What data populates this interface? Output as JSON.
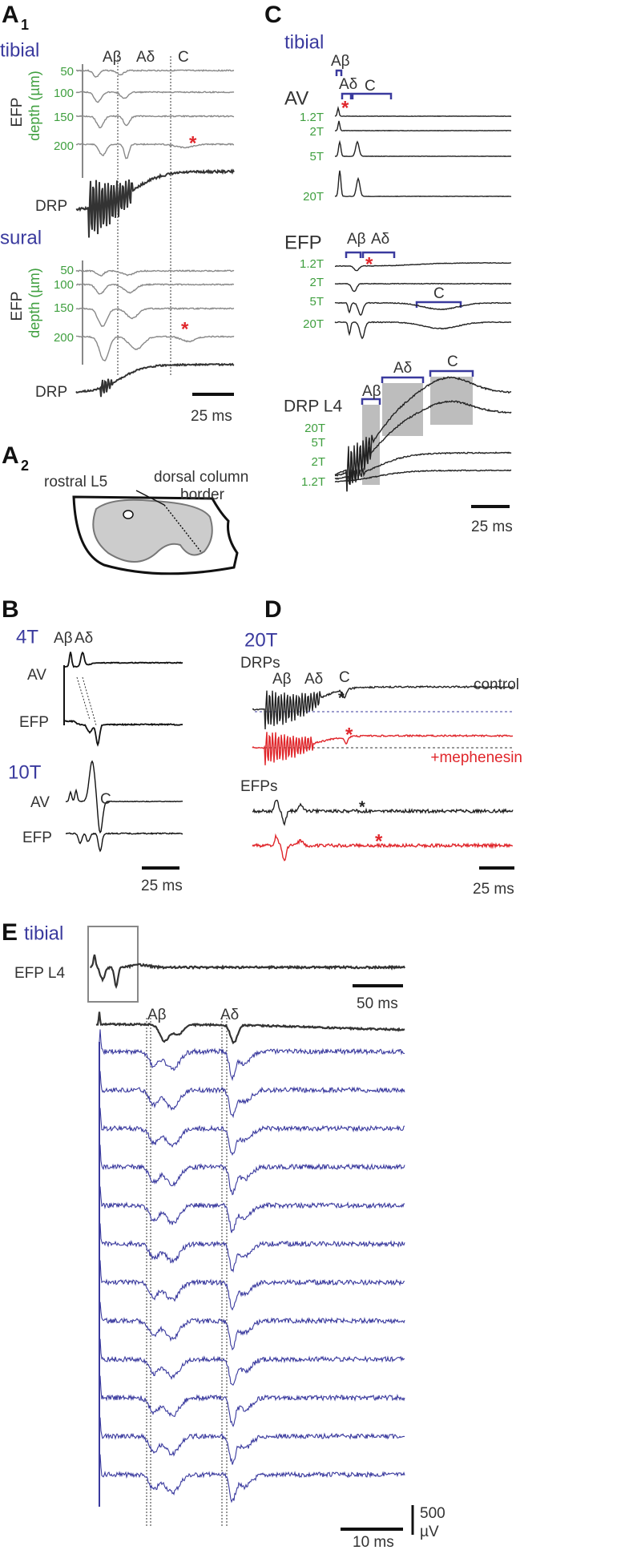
{
  "panel_a1": {
    "label": "A",
    "label_sub": "1",
    "tibial": {
      "title": "tibial",
      "components": [
        "Aβ",
        "Aδ",
        "C"
      ],
      "efp_label": "EFP",
      "depth_label": "depth (µm)",
      "depths": [
        "50",
        "100",
        "150",
        "200"
      ],
      "asterisk": "*",
      "drp_label": "DRP"
    },
    "sural": {
      "title": "sural",
      "efp_label": "EFP",
      "depth_label": "depth (µm)",
      "depths": [
        "50",
        "100",
        "150",
        "200"
      ],
      "asterisk": "*",
      "drp_label": "DRP"
    },
    "scale_bar": "25 ms"
  },
  "panel_a2": {
    "label": "A",
    "label_sub": "2",
    "rostral_label": "rostral L5",
    "border_label": [
      "dorsal column",
      "border"
    ]
  },
  "panel_b": {
    "label": "B",
    "stim_4t": {
      "title": "4T",
      "components": [
        "Aβ",
        "Aδ"
      ],
      "traces": [
        "AV",
        "EFP"
      ]
    },
    "stim_10t": {
      "title": "10T",
      "components": [
        "C"
      ],
      "traces": [
        "AV",
        "EFP"
      ]
    },
    "scale_bar": "25 ms"
  },
  "panel_c": {
    "label": "C",
    "title": "tibial",
    "av": {
      "label": "AV",
      "components": [
        "Aβ",
        "Aδ",
        "C"
      ],
      "asterisk": "*",
      "intensities": [
        "1.2T",
        "2T",
        "5T",
        "20T"
      ]
    },
    "efp": {
      "label": "EFP",
      "components": [
        "Aβ",
        "Aδ",
        "C"
      ],
      "asterisk": "*",
      "intensities": [
        "1.2T",
        "2T",
        "5T",
        "20T"
      ]
    },
    "drp": {
      "label": "DRP L4",
      "components": [
        "Aβ",
        "Aδ",
        "C"
      ],
      "intensities": [
        "20T",
        "5T",
        "2T",
        "1.2T"
      ]
    },
    "scale_bar": "25 ms"
  },
  "panel_d": {
    "label": "D",
    "title": "20T",
    "drps": {
      "label": "DRPs",
      "components": [
        "Aβ",
        "Aδ",
        "C"
      ],
      "asterisks": [
        "*",
        "*"
      ],
      "conditions": [
        "control",
        "+mephenesin"
      ]
    },
    "efps": {
      "label": "EFPs",
      "asterisks": [
        "*",
        "*"
      ]
    },
    "scale_bar": "25 ms"
  },
  "panel_e": {
    "label": "E",
    "title": "tibial",
    "efp_label": "EFP L4",
    "scale_bar_long": "50 ms",
    "components": [
      "Aβ",
      "Aδ"
    ],
    "amplitude_scale": [
      "500",
      "µV"
    ],
    "scale_bar_short": "10 ms"
  }
}
